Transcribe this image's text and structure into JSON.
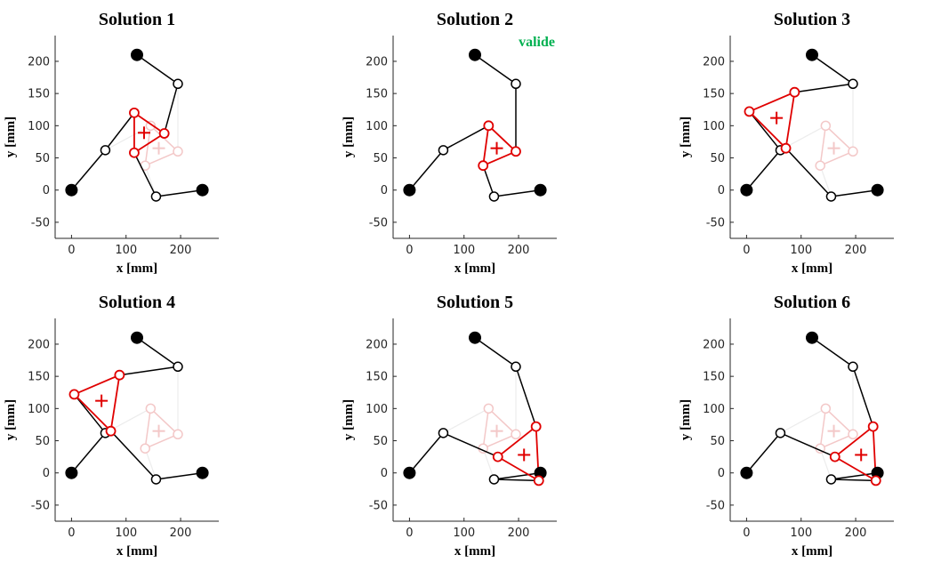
{
  "figure": {
    "xlabel": "x [mm]",
    "ylabel": "y [mm]",
    "xticks": [
      0,
      100,
      200
    ],
    "yticks": [
      -50,
      0,
      50,
      100,
      150,
      200
    ],
    "xlim": [
      -30,
      270
    ],
    "ylim": [
      -75,
      240
    ],
    "colors": {
      "black": "#000000",
      "red": "#e00000",
      "ghost": "#f3c8c8",
      "ghost_link": "#ececec",
      "valid": "#00b050"
    },
    "base_pivots": [
      [
        0,
        0
      ],
      [
        120,
        210
      ],
      [
        240,
        0
      ]
    ],
    "reference_pose": {
      "platform": [
        [
          145,
          100
        ],
        [
          195,
          60
        ],
        [
          135,
          38
        ]
      ],
      "center": [
        160,
        65
      ],
      "elbows": [
        [
          62,
          62
        ],
        [
          195,
          165
        ],
        [
          155,
          -10
        ]
      ]
    }
  },
  "chart_data": [
    {
      "type": "diagram",
      "title": "Solution 1",
      "note": "",
      "elbows": [
        [
          62,
          62
        ],
        [
          195,
          165
        ],
        [
          155,
          -10
        ]
      ],
      "platform": [
        [
          115,
          120
        ],
        [
          170,
          88
        ],
        [
          115,
          58
        ]
      ],
      "center": [
        133,
        89
      ]
    },
    {
      "type": "diagram",
      "title": "Solution 2",
      "note": "valide",
      "elbows": [
        [
          62,
          62
        ],
        [
          195,
          165
        ],
        [
          155,
          -10
        ]
      ],
      "platform": [
        [
          145,
          100
        ],
        [
          195,
          60
        ],
        [
          135,
          38
        ]
      ],
      "center": [
        160,
        65
      ]
    },
    {
      "type": "diagram",
      "title": "Solution 3",
      "note": "",
      "elbows": [
        [
          62,
          62
        ],
        [
          195,
          165
        ],
        [
          155,
          -10
        ]
      ],
      "platform": [
        [
          5,
          122
        ],
        [
          88,
          152
        ],
        [
          72,
          65
        ]
      ],
      "center": [
        55,
        112
      ]
    },
    {
      "type": "diagram",
      "title": "Solution 4",
      "note": "",
      "elbows": [
        [
          62,
          62
        ],
        [
          195,
          165
        ],
        [
          155,
          -10
        ]
      ],
      "platform": [
        [
          5,
          122
        ],
        [
          88,
          152
        ],
        [
          72,
          65
        ]
      ],
      "center": [
        55,
        112
      ]
    },
    {
      "type": "diagram",
      "title": "Solution 5",
      "note": "",
      "elbows": [
        [
          62,
          62
        ],
        [
          195,
          165
        ],
        [
          155,
          -10
        ]
      ],
      "platform": [
        [
          162,
          25
        ],
        [
          232,
          72
        ],
        [
          237,
          -12
        ]
      ],
      "center": [
        210,
        28
      ]
    },
    {
      "type": "diagram",
      "title": "Solution 6",
      "note": "",
      "elbows": [
        [
          62,
          62
        ],
        [
          195,
          165
        ],
        [
          155,
          -10
        ]
      ],
      "platform": [
        [
          162,
          25
        ],
        [
          232,
          72
        ],
        [
          237,
          -12
        ]
      ],
      "center": [
        210,
        28
      ]
    }
  ]
}
